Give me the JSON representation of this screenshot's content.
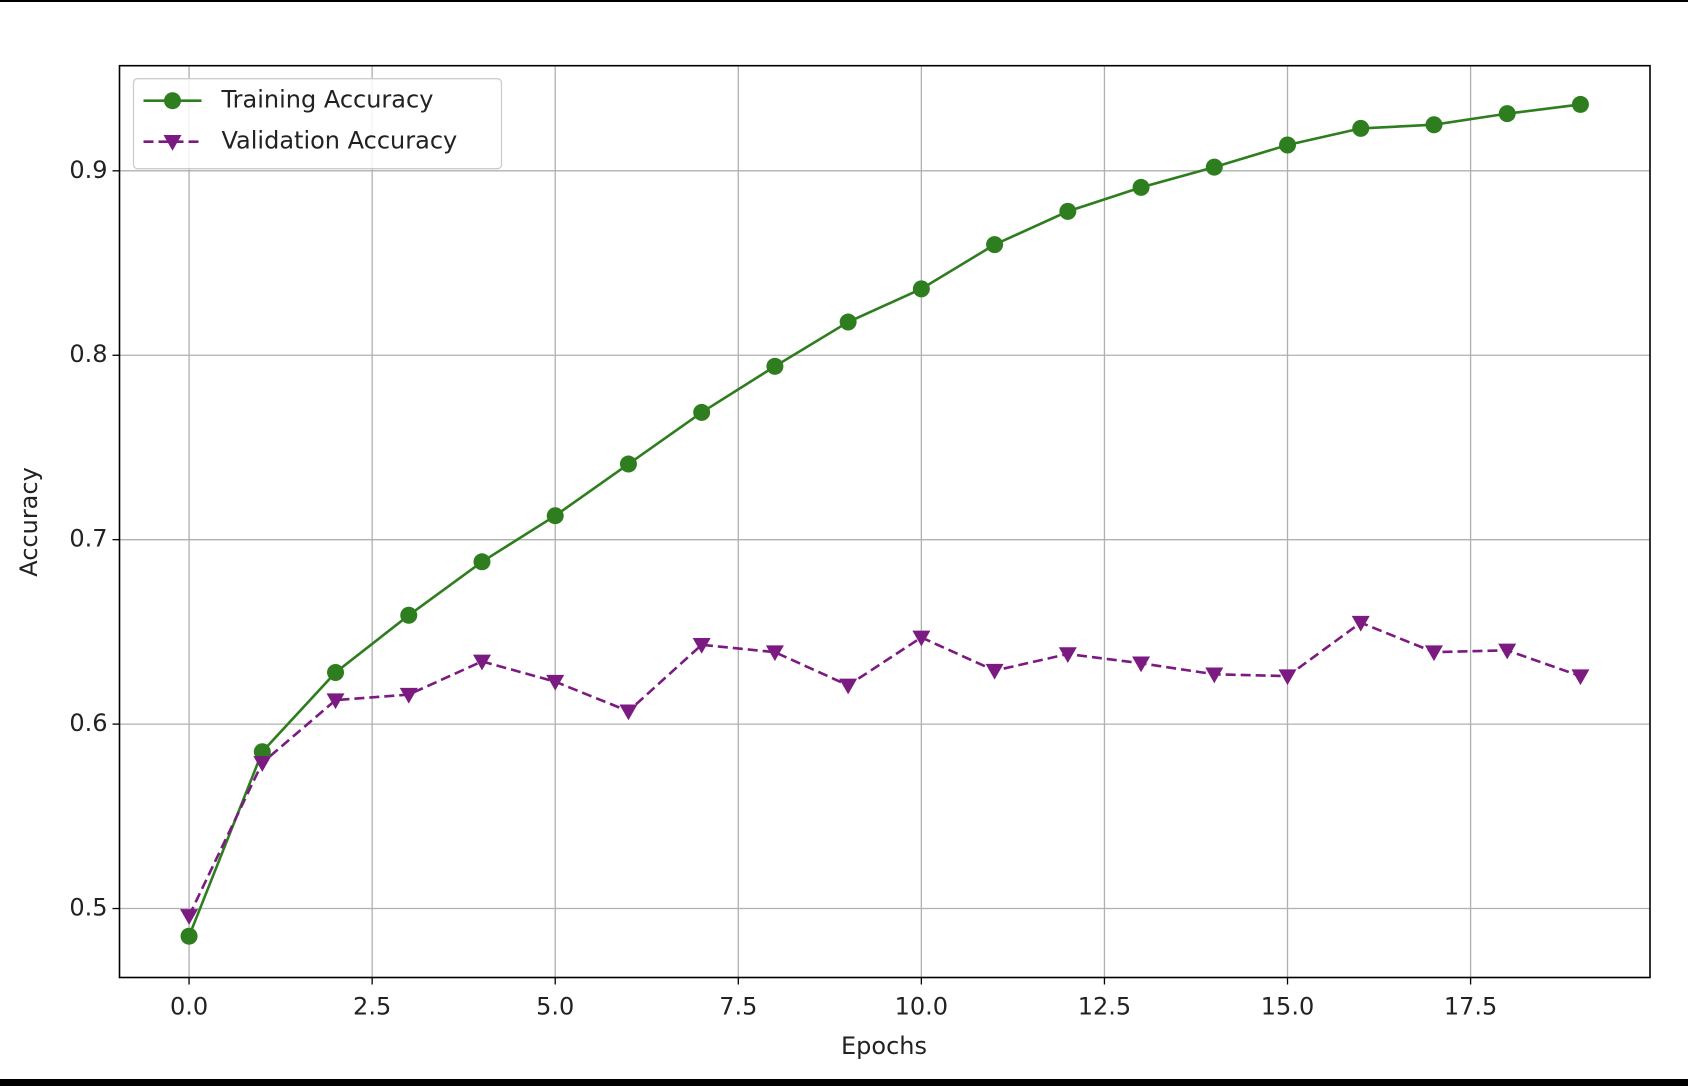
{
  "chart_data": {
    "type": "line",
    "xlabel": "Epochs",
    "ylabel": "Accuracy",
    "x": [
      0,
      1,
      2,
      3,
      4,
      5,
      6,
      7,
      8,
      9,
      10,
      11,
      12,
      13,
      14,
      15,
      16,
      17,
      18,
      19
    ],
    "series": [
      {
        "name": "Training Accuracy",
        "color": "#2e7d1f",
        "marker": "circle",
        "linestyle": "solid",
        "values": [
          0.485,
          0.585,
          0.628,
          0.659,
          0.688,
          0.713,
          0.741,
          0.769,
          0.794,
          0.818,
          0.836,
          0.86,
          0.878,
          0.891,
          0.902,
          0.914,
          0.923,
          0.925,
          0.931,
          0.936
        ]
      },
      {
        "name": "Validation Accuracy",
        "color": "#7b1a80",
        "marker": "triangle-down",
        "linestyle": "dashed",
        "values": [
          0.496,
          0.579,
          0.613,
          0.616,
          0.634,
          0.623,
          0.607,
          0.643,
          0.639,
          0.621,
          0.647,
          0.629,
          0.638,
          0.633,
          0.627,
          0.626,
          0.655,
          0.639,
          0.64,
          0.626
        ]
      }
    ],
    "xlim": [
      -0.95,
      19.95
    ],
    "ylim": [
      0.4626,
      0.957
    ],
    "xticks": [
      {
        "value": 0,
        "label": "0.0"
      },
      2.5,
      {
        "value": 5,
        "label": "5.0"
      },
      7.5,
      {
        "value": 10,
        "label": "10.0"
      },
      12.5,
      {
        "value": 15,
        "label": "15.0"
      },
      17.5
    ],
    "yticks": [
      0.5,
      0.6,
      0.7,
      0.8,
      0.9
    ],
    "grid": true,
    "legend": "upper left"
  }
}
